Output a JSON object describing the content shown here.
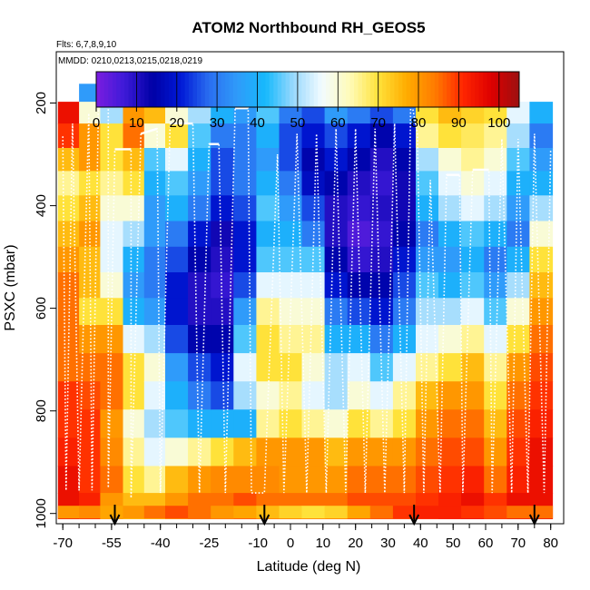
{
  "chart_data": {
    "type": "heatmap",
    "title": "ATOM2 Northbound RH_GEOS5",
    "flights_note": "Flts: 6,7,8,9,10",
    "dates_note": "MMDD: 0210,0213,0215,0218,0219",
    "xlabel": "Latitude (deg N)",
    "ylabel": "PSXC (mbar)",
    "xlim": [
      -72,
      84
    ],
    "ylim": [
      1020,
      100
    ],
    "y_reversed": true,
    "x_ticks": [
      -70,
      -55,
      -40,
      -25,
      -10,
      0,
      10,
      20,
      30,
      40,
      50,
      60,
      70,
      80
    ],
    "y_ticks": [
      200,
      400,
      600,
      800,
      1000
    ],
    "colorbar": {
      "range": [
        0,
        105
      ],
      "ticks": [
        0,
        10,
        20,
        30,
        40,
        50,
        60,
        70,
        80,
        90,
        100
      ],
      "stops": [
        "#7b1de0",
        "#3d1ad8",
        "#0000a6",
        "#0019d6",
        "#2a6ef0",
        "#2f9bfa",
        "#16b9fc",
        "#9ad9fd",
        "#f2fbff",
        "#fffbb8",
        "#ffe23a",
        "#ffac00",
        "#ff7c00",
        "#ff2600",
        "#de0000",
        "#9c1010"
      ]
    },
    "pressure_levels": [
      180,
      215,
      265,
      310,
      355,
      405,
      455,
      505,
      555,
      605,
      660,
      715,
      770,
      825,
      880,
      935,
      985
    ],
    "latitude_profile": [
      {
        "lat": -68,
        "rh": [
          null,
          95,
          90,
          75,
          65,
          70,
          75,
          80,
          85,
          85,
          85,
          85,
          90,
          90,
          92,
          95,
          95
        ]
      },
      {
        "lat": -62,
        "rh": [
          35,
          60,
          80,
          80,
          70,
          75,
          80,
          75,
          75,
          70,
          80,
          85,
          88,
          90,
          90,
          90,
          92
        ]
      },
      {
        "lat": -55,
        "rh": [
          30,
          50,
          70,
          70,
          65,
          60,
          55,
          55,
          60,
          70,
          80,
          85,
          85,
          80,
          82,
          85,
          80
        ]
      },
      {
        "lat": -48,
        "rh": [
          25,
          80,
          85,
          75,
          70,
          60,
          50,
          40,
          35,
          40,
          55,
          70,
          70,
          60,
          65,
          70,
          75
        ]
      },
      {
        "lat": -42,
        "rh": [
          20,
          75,
          60,
          45,
          40,
          35,
          35,
          30,
          30,
          35,
          50,
          60,
          55,
          50,
          55,
          65,
          75
        ]
      },
      {
        "lat": -35,
        "rh": [
          20,
          60,
          70,
          55,
          45,
          40,
          30,
          25,
          20,
          20,
          25,
          35,
          40,
          45,
          60,
          75,
          80
        ]
      },
      {
        "lat": -28,
        "rh": [
          18,
          50,
          45,
          40,
          35,
          30,
          20,
          15,
          10,
          10,
          15,
          25,
          30,
          40,
          65,
          80,
          85
        ]
      },
      {
        "lat": -21,
        "rh": [
          18,
          40,
          30,
          25,
          25,
          20,
          12,
          10,
          8,
          10,
          15,
          20,
          25,
          40,
          70,
          82,
          85
        ]
      },
      {
        "lat": -14,
        "rh": [
          22,
          35,
          30,
          30,
          30,
          25,
          20,
          20,
          25,
          35,
          45,
          55,
          50,
          40,
          75,
          82,
          88
        ]
      },
      {
        "lat": -7,
        "rh": [
          28,
          45,
          40,
          35,
          40,
          45,
          40,
          45,
          55,
          65,
          70,
          70,
          60,
          65,
          80,
          82,
          85
        ]
      },
      {
        "lat": 0,
        "rh": [
          32,
          30,
          25,
          25,
          30,
          35,
          40,
          45,
          55,
          60,
          65,
          70,
          65,
          70,
          80,
          80,
          85
        ]
      },
      {
        "lat": 7,
        "rh": [
          35,
          25,
          20,
          15,
          18,
          25,
          30,
          45,
          55,
          60,
          65,
          60,
          55,
          65,
          80,
          80,
          85
        ]
      },
      {
        "lat": 14,
        "rh": [
          38,
          35,
          25,
          20,
          15,
          10,
          10,
          15,
          20,
          30,
          40,
          50,
          50,
          60,
          75,
          80,
          85
        ]
      },
      {
        "lat": 21,
        "rh": [
          40,
          30,
          20,
          15,
          10,
          8,
          5,
          8,
          15,
          25,
          40,
          55,
          60,
          70,
          80,
          85,
          88
        ]
      },
      {
        "lat": 28,
        "rh": [
          42,
          25,
          15,
          10,
          8,
          10,
          8,
          10,
          15,
          20,
          30,
          45,
          55,
          65,
          80,
          85,
          88
        ]
      },
      {
        "lat": 35,
        "rh": [
          48,
          30,
          20,
          15,
          12,
          12,
          15,
          20,
          25,
          30,
          40,
          55,
          65,
          70,
          80,
          85,
          88
        ]
      },
      {
        "lat": 42,
        "rh": [
          null,
          70,
          65,
          50,
          45,
          40,
          30,
          35,
          45,
          50,
          55,
          65,
          75,
          80,
          85,
          88,
          90
        ]
      },
      {
        "lat": 49,
        "rh": [
          null,
          75,
          70,
          60,
          55,
          50,
          40,
          35,
          40,
          50,
          60,
          70,
          80,
          85,
          88,
          90,
          92
        ]
      },
      {
        "lat": 56,
        "rh": [
          null,
          72,
          68,
          65,
          60,
          55,
          45,
          40,
          45,
          55,
          65,
          75,
          80,
          85,
          88,
          92,
          95
        ]
      },
      {
        "lat": 63,
        "rh": [
          null,
          70,
          65,
          60,
          55,
          50,
          40,
          30,
          35,
          45,
          55,
          65,
          70,
          75,
          80,
          85,
          90
        ]
      },
      {
        "lat": 70,
        "rh": [
          null,
          55,
          50,
          45,
          40,
          35,
          30,
          40,
          50,
          60,
          70,
          80,
          85,
          88,
          90,
          92,
          95
        ]
      },
      {
        "lat": 77,
        "rh": [
          null,
          40,
          30,
          35,
          40,
          50,
          60,
          70,
          75,
          80,
          85,
          88,
          90,
          92,
          95,
          95,
          95
        ]
      }
    ],
    "surface_strip": {
      "pressure": [
        985,
        1010
      ],
      "rh": [
        80,
        82,
        78,
        80,
        85,
        88,
        85,
        80,
        78,
        75,
        72,
        70,
        72,
        78,
        85,
        90,
        92,
        92,
        90,
        88,
        85,
        85
      ]
    },
    "flight_track": [
      {
        "lat": -70,
        "p": 265
      },
      {
        "lat": -69,
        "p": 955
      },
      {
        "lat": -67,
        "p": 240
      },
      {
        "lat": -65,
        "p": 955
      },
      {
        "lat": -62,
        "p": 220
      },
      {
        "lat": -61,
        "p": 955
      },
      {
        "lat": -59,
        "p": 190
      },
      {
        "lat": -56,
        "p": 190
      },
      {
        "lat": -56,
        "p": 950
      },
      {
        "lat": -54,
        "p": 290
      },
      {
        "lat": -49,
        "p": 290
      },
      {
        "lat": -49,
        "p": 970
      },
      {
        "lat": -46,
        "p": 260
      },
      {
        "lat": -41,
        "p": 250
      },
      {
        "lat": -40,
        "p": 960
      },
      {
        "lat": -37,
        "p": 240
      },
      {
        "lat": -30,
        "p": 240
      },
      {
        "lat": -28,
        "p": 960
      },
      {
        "lat": -25,
        "p": 280
      },
      {
        "lat": -22,
        "p": 280
      },
      {
        "lat": -20,
        "p": 960
      },
      {
        "lat": -17,
        "p": 210
      },
      {
        "lat": -13,
        "p": 210
      },
      {
        "lat": -12,
        "p": 960
      },
      {
        "lat": -8,
        "p": 960
      },
      {
        "lat": -4,
        "p": 300
      },
      {
        "lat": -2,
        "p": 960
      },
      {
        "lat": 2,
        "p": 260
      },
      {
        "lat": 5,
        "p": 960
      },
      {
        "lat": 8,
        "p": 260
      },
      {
        "lat": 11,
        "p": 960
      },
      {
        "lat": 14,
        "p": 250
      },
      {
        "lat": 17,
        "p": 960
      },
      {
        "lat": 20,
        "p": 250
      },
      {
        "lat": 23,
        "p": 960
      },
      {
        "lat": 26,
        "p": 250
      },
      {
        "lat": 29,
        "p": 960
      },
      {
        "lat": 32,
        "p": 240
      },
      {
        "lat": 35,
        "p": 960
      },
      {
        "lat": 37,
        "p": 190
      },
      {
        "lat": 39,
        "p": 260
      },
      {
        "lat": 41,
        "p": 960
      },
      {
        "lat": 43,
        "p": 350
      },
      {
        "lat": 46,
        "p": 960
      },
      {
        "lat": 48,
        "p": 340
      },
      {
        "lat": 52,
        "p": 340
      },
      {
        "lat": 53,
        "p": 960
      },
      {
        "lat": 56,
        "p": 330
      },
      {
        "lat": 61,
        "p": 330
      },
      {
        "lat": 62,
        "p": 960
      },
      {
        "lat": 65,
        "p": 270
      },
      {
        "lat": 68,
        "p": 960
      },
      {
        "lat": 70,
        "p": 270
      },
      {
        "lat": 73,
        "p": 960
      },
      {
        "lat": 75,
        "p": 260
      },
      {
        "lat": 78,
        "p": 960
      },
      {
        "lat": 80,
        "p": 290
      }
    ],
    "markers": [
      -54,
      -8,
      38,
      75
    ]
  }
}
